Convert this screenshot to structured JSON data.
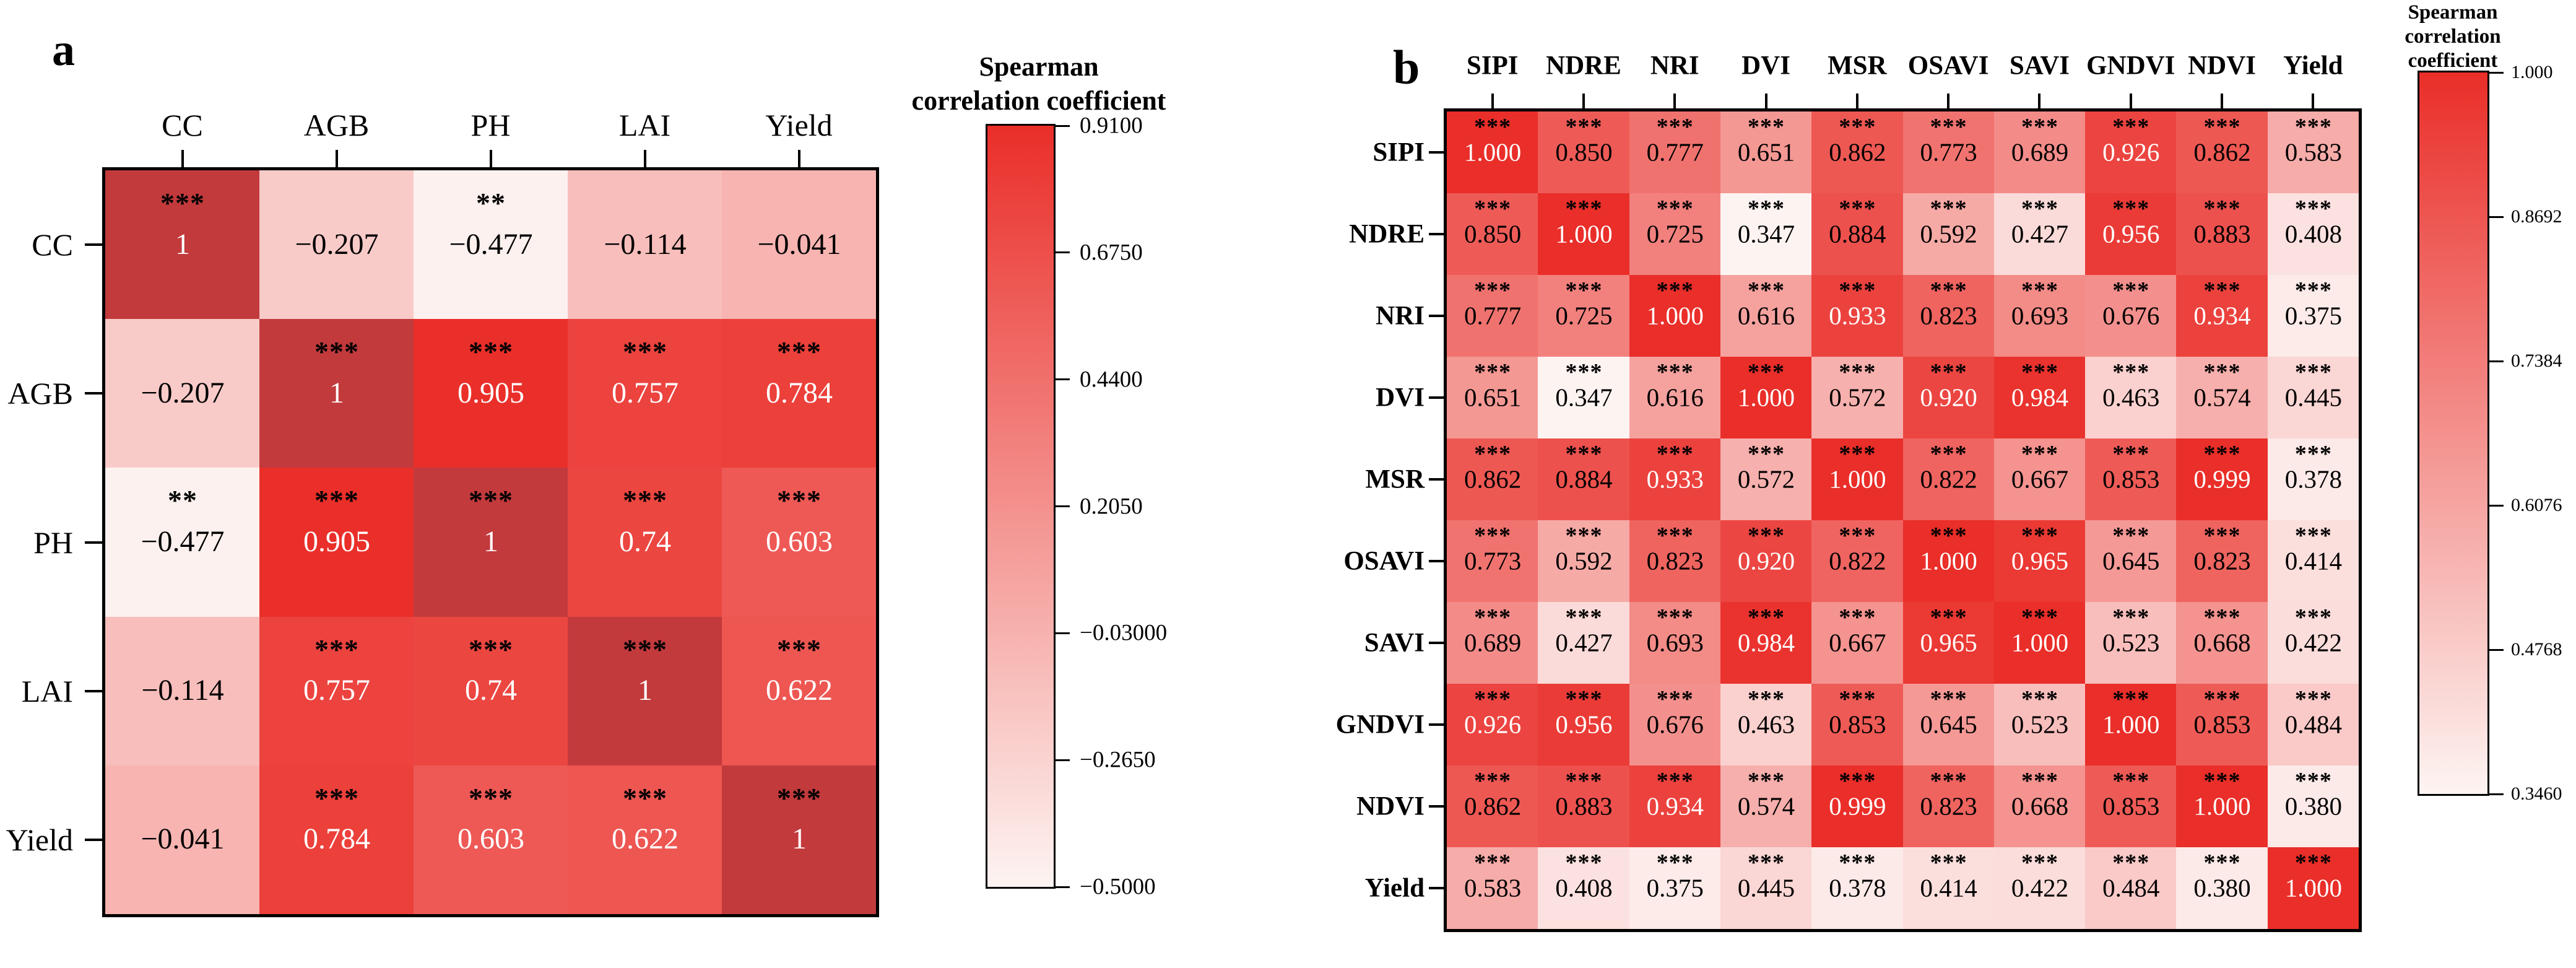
{
  "chart_data": [
    {
      "type": "heatmap",
      "panel_label": "a",
      "categories": [
        "CC",
        "AGB",
        "PH",
        "LAI",
        "Yield"
      ],
      "matrix": [
        [
          1,
          -0.207,
          -0.477,
          -0.114,
          -0.041
        ],
        [
          -0.207,
          1,
          0.905,
          0.757,
          0.784
        ],
        [
          -0.477,
          0.905,
          1,
          0.74,
          0.603
        ],
        [
          -0.114,
          0.757,
          0.74,
          1,
          0.622
        ],
        [
          -0.041,
          0.784,
          0.603,
          0.622,
          1
        ]
      ],
      "cell_text": [
        [
          "1",
          "−0.207",
          "−0.477",
          "−0.114",
          "−0.041"
        ],
        [
          "−0.207",
          "1",
          "0.905",
          "0.757",
          "0.784"
        ],
        [
          "−0.477",
          "0.905",
          "1",
          "0.74",
          "0.603"
        ],
        [
          "−0.114",
          "0.757",
          "0.74",
          "1",
          "0.622"
        ],
        [
          "−0.041",
          "0.784",
          "0.603",
          "0.622",
          "1"
        ]
      ],
      "significance": [
        [
          "***",
          "",
          "**",
          "",
          ""
        ],
        [
          "",
          "***",
          "***",
          "***",
          "***"
        ],
        [
          "**",
          "***",
          "***",
          "***",
          "***"
        ],
        [
          "",
          "***",
          "***",
          "***",
          "***"
        ],
        [
          "",
          "***",
          "***",
          "***",
          "***"
        ]
      ],
      "colorbar": {
        "title": "Spearman correlation coefficient",
        "title_lines": [
          "Spearman",
          "correlation coefficient"
        ],
        "tick_labels": [
          "0.9100",
          "0.6750",
          "0.4400",
          "0.2050",
          "−0.03000",
          "−0.2650",
          "−0.5000"
        ],
        "vmin": -0.5,
        "vmax": 0.91
      },
      "colormap": {
        "low": "#FDF4F2",
        "high": "#EA2E29",
        "over": "#C23A3C"
      },
      "white_text_threshold": 0.6,
      "grid": false,
      "legend_position": "right"
    },
    {
      "type": "heatmap",
      "panel_label": "b",
      "categories": [
        "SIPI",
        "NDRE",
        "NRI",
        "DVI",
        "MSR",
        "OSAVI",
        "SAVI",
        "GNDVI",
        "NDVI",
        "Yield"
      ],
      "matrix": [
        [
          1.0,
          0.85,
          0.777,
          0.651,
          0.862,
          0.773,
          0.689,
          0.926,
          0.862,
          0.583
        ],
        [
          0.85,
          1.0,
          0.725,
          0.347,
          0.884,
          0.592,
          0.427,
          0.956,
          0.883,
          0.408
        ],
        [
          0.777,
          0.725,
          1.0,
          0.616,
          0.933,
          0.823,
          0.693,
          0.676,
          0.934,
          0.375
        ],
        [
          0.651,
          0.347,
          0.616,
          1.0,
          0.572,
          0.92,
          0.984,
          0.463,
          0.574,
          0.445
        ],
        [
          0.862,
          0.884,
          0.933,
          0.572,
          1.0,
          0.822,
          0.667,
          0.853,
          0.999,
          0.378
        ],
        [
          0.773,
          0.592,
          0.823,
          0.92,
          0.822,
          1.0,
          0.965,
          0.645,
          0.823,
          0.414
        ],
        [
          0.689,
          0.427,
          0.693,
          0.984,
          0.667,
          0.965,
          1.0,
          0.523,
          0.668,
          0.422
        ],
        [
          0.926,
          0.956,
          0.676,
          0.463,
          0.853,
          0.645,
          0.523,
          1.0,
          0.853,
          0.484
        ],
        [
          0.862,
          0.883,
          0.934,
          0.574,
          0.999,
          0.823,
          0.668,
          0.853,
          1.0,
          0.38
        ],
        [
          0.583,
          0.408,
          0.375,
          0.445,
          0.378,
          0.414,
          0.422,
          0.484,
          0.38,
          1.0
        ]
      ],
      "cell_text": [
        [
          "1.000",
          "0.850",
          "0.777",
          "0.651",
          "0.862",
          "0.773",
          "0.689",
          "0.926",
          "0.862",
          "0.583"
        ],
        [
          "0.850",
          "1.000",
          "0.725",
          "0.347",
          "0.884",
          "0.592",
          "0.427",
          "0.956",
          "0.883",
          "0.408"
        ],
        [
          "0.777",
          "0.725",
          "1.000",
          "0.616",
          "0.933",
          "0.823",
          "0.693",
          "0.676",
          "0.934",
          "0.375"
        ],
        [
          "0.651",
          "0.347",
          "0.616",
          "1.000",
          "0.572",
          "0.920",
          "0.984",
          "0.463",
          "0.574",
          "0.445"
        ],
        [
          "0.862",
          "0.884",
          "0.933",
          "0.572",
          "1.000",
          "0.822",
          "0.667",
          "0.853",
          "0.999",
          "0.378"
        ],
        [
          "0.773",
          "0.592",
          "0.823",
          "0.920",
          "0.822",
          "1.000",
          "0.965",
          "0.645",
          "0.823",
          "0.414"
        ],
        [
          "0.689",
          "0.427",
          "0.693",
          "0.984",
          "0.667",
          "0.965",
          "1.000",
          "0.523",
          "0.668",
          "0.422"
        ],
        [
          "0.926",
          "0.956",
          "0.676",
          "0.463",
          "0.853",
          "0.645",
          "0.523",
          "1.000",
          "0.853",
          "0.484"
        ],
        [
          "0.862",
          "0.883",
          "0.934",
          "0.574",
          "0.999",
          "0.823",
          "0.668",
          "0.853",
          "1.000",
          "0.380"
        ],
        [
          "0.583",
          "0.408",
          "0.375",
          "0.445",
          "0.378",
          "0.414",
          "0.422",
          "0.484",
          "0.380",
          "1.000"
        ]
      ],
      "significance": [
        [
          "***",
          "***",
          "***",
          "***",
          "***",
          "***",
          "***",
          "***",
          "***",
          "***"
        ],
        [
          "***",
          "***",
          "***",
          "***",
          "***",
          "***",
          "***",
          "***",
          "***",
          "***"
        ],
        [
          "***",
          "***",
          "***",
          "***",
          "***",
          "***",
          "***",
          "***",
          "***",
          "***"
        ],
        [
          "***",
          "***",
          "***",
          "***",
          "***",
          "***",
          "***",
          "***",
          "***",
          "***"
        ],
        [
          "***",
          "***",
          "***",
          "***",
          "***",
          "***",
          "***",
          "***",
          "***",
          "***"
        ],
        [
          "***",
          "***",
          "***",
          "***",
          "***",
          "***",
          "***",
          "***",
          "***",
          "***"
        ],
        [
          "***",
          "***",
          "***",
          "***",
          "***",
          "***",
          "***",
          "***",
          "***",
          "***"
        ],
        [
          "***",
          "***",
          "***",
          "***",
          "***",
          "***",
          "***",
          "***",
          "***",
          "***"
        ],
        [
          "***",
          "***",
          "***",
          "***",
          "***",
          "***",
          "***",
          "***",
          "***",
          "***"
        ],
        [
          "***",
          "***",
          "***",
          "***",
          "***",
          "***",
          "***",
          "***",
          "***",
          "***"
        ]
      ],
      "colorbar": {
        "title": "Spearman correlation coefficient",
        "title_lines": [
          "Spearman",
          "correlation",
          "coefficient"
        ],
        "tick_labels": [
          "1.000",
          "0.8692",
          "0.7384",
          "0.6076",
          "0.4768",
          "0.3460"
        ],
        "vmin": 0.346,
        "vmax": 1.0
      },
      "colormap": {
        "low": "#FDF4F2",
        "high": "#EA2E29",
        "over": "#C23A3C"
      },
      "white_text_threshold": 0.9,
      "grid": false,
      "legend_position": "right"
    }
  ]
}
